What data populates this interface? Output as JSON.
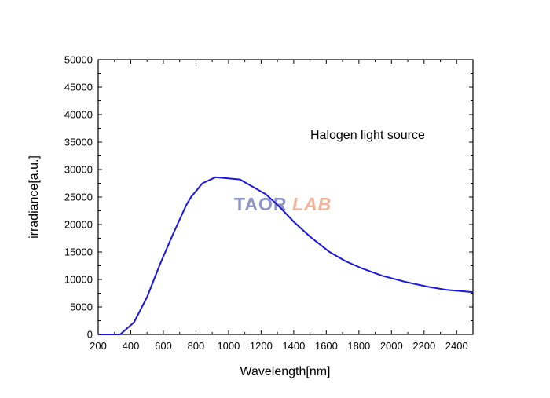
{
  "chart_data": {
    "type": "line",
    "title": "",
    "xlabel": "Wavelength[nm]",
    "ylabel": "irradiance[a.u.]",
    "xlim": [
      200,
      2500
    ],
    "ylim": [
      0,
      50000
    ],
    "x_ticks": [
      200,
      400,
      600,
      800,
      1000,
      1200,
      1400,
      1600,
      1800,
      2000,
      2200,
      2400
    ],
    "y_ticks": [
      0,
      5000,
      10000,
      15000,
      20000,
      25000,
      30000,
      35000,
      40000,
      45000,
      50000
    ],
    "grid": false,
    "annotation": "Halogen light source",
    "series": [
      {
        "x": [
          200,
          300,
          335,
          420,
          500,
          580,
          660,
          740,
          770,
          840,
          920,
          1070,
          1230,
          1320,
          1400,
          1500,
          1620,
          1720,
          1820,
          1940,
          2080,
          2220,
          2340,
          2500
        ],
        "y": [
          0,
          0,
          0,
          2200,
          6800,
          12800,
          18300,
          23500,
          25000,
          27500,
          28600,
          28200,
          25500,
          23000,
          20500,
          17800,
          15000,
          13300,
          12000,
          10700,
          9600,
          8700,
          8100,
          7700
        ],
        "color": "#1a14e6"
      }
    ]
  },
  "watermark": {
    "part1": "TAOR",
    "part2": "LAB",
    "part1_color": "#8c94c6",
    "part2_color": "#f0b396"
  }
}
